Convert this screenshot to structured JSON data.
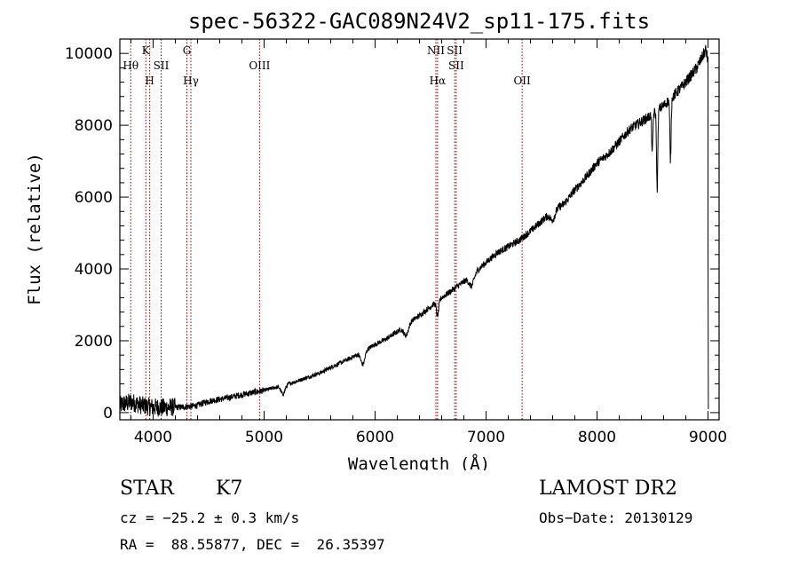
{
  "chart_data": {
    "type": "line",
    "title": "spec-56322-GAC089N24V2_sp11-175.fits",
    "xlabel": "Wavelength (Å)",
    "ylabel": "Flux (relative)",
    "xlim": [
      3700,
      9100
    ],
    "ylim": [
      -200,
      10400
    ],
    "xticks": [
      "4000",
      "5000",
      "6000",
      "7000",
      "8000",
      "9000"
    ],
    "yticks": [
      "0",
      "2000",
      "4000",
      "6000",
      "8000",
      "10000"
    ],
    "colors": {
      "spectrum": "#000000",
      "lines": "#8b0000",
      "frame": "#000000"
    },
    "spectrum_anchors": [
      [
        3700,
        200
      ],
      [
        3800,
        300
      ],
      [
        3900,
        200
      ],
      [
        4000,
        150
      ],
      [
        4100,
        150
      ],
      [
        4200,
        200
      ],
      [
        4300,
        250
      ],
      [
        4400,
        250
      ],
      [
        4500,
        330
      ],
      [
        4600,
        370
      ],
      [
        4700,
        430
      ],
      [
        4800,
        500
      ],
      [
        4900,
        560
      ],
      [
        5000,
        620
      ],
      [
        5100,
        700
      ],
      [
        5200,
        780
      ],
      [
        5300,
        880
      ],
      [
        5400,
        990
      ],
      [
        5500,
        1100
      ],
      [
        5600,
        1260
      ],
      [
        5700,
        1400
      ],
      [
        5800,
        1550
      ],
      [
        5900,
        1710
      ],
      [
        6000,
        1900
      ],
      [
        6100,
        2050
      ],
      [
        6200,
        2250
      ],
      [
        6300,
        2500
      ],
      [
        6400,
        2700
      ],
      [
        6500,
        2950
      ],
      [
        6600,
        3200
      ],
      [
        6700,
        3420
      ],
      [
        6800,
        3650
      ],
      [
        6900,
        3900
      ],
      [
        7000,
        4180
      ],
      [
        7100,
        4450
      ],
      [
        7200,
        4620
      ],
      [
        7300,
        4800
      ],
      [
        7400,
        5050
      ],
      [
        7500,
        5330
      ],
      [
        7600,
        5620
      ],
      [
        7700,
        5800
      ],
      [
        7800,
        6200
      ],
      [
        7900,
        6550
      ],
      [
        8000,
        6950
      ],
      [
        8100,
        7200
      ],
      [
        8200,
        7550
      ],
      [
        8300,
        7900
      ],
      [
        8400,
        8100
      ],
      [
        8500,
        8300
      ],
      [
        8600,
        8550
      ],
      [
        8700,
        8850
      ],
      [
        8800,
        9200
      ],
      [
        8900,
        9600
      ],
      [
        8980,
        10100
      ],
      [
        9000,
        9800
      ]
    ],
    "absorption_features": [
      [
        4300,
        80,
        140
      ],
      [
        5170,
        250,
        25
      ],
      [
        5890,
        350,
        25
      ],
      [
        6280,
        300,
        30
      ],
      [
        6563,
        400,
        15
      ],
      [
        6870,
        300,
        30
      ],
      [
        7600,
        250,
        30
      ],
      [
        8498,
        1100,
        7
      ],
      [
        8542,
        2200,
        8
      ],
      [
        8662,
        1700,
        8
      ]
    ],
    "lines": [
      {
        "label": "Hθ",
        "wavelength": 3798,
        "row": "top",
        "offset": 0
      },
      {
        "label": "K",
        "wavelength": 3934,
        "row": "upper",
        "offset": 0
      },
      {
        "label": "H",
        "wavelength": 3969,
        "row": "lower",
        "offset": 0
      },
      {
        "label": "SII",
        "wavelength": 4072,
        "row": "top",
        "offset": 0
      },
      {
        "label": "G",
        "wavelength": 4304,
        "row": "upper",
        "offset": 0
      },
      {
        "label": "Hγ",
        "wavelength": 4340,
        "row": "lower",
        "offset": 0
      },
      {
        "label": "OIII",
        "wavelength": 4959,
        "row": "top",
        "offset": 0
      },
      {
        "label": "NII",
        "wavelength": 6548,
        "row": "upper",
        "offset": 0
      },
      {
        "label": "Hα",
        "wavelength": 6563,
        "row": "lower",
        "offset": 0
      },
      {
        "label": "SII",
        "wavelength": 6717,
        "row": "upper",
        "offset": 0
      },
      {
        "label": "SII",
        "wavelength": 6731,
        "row": "top",
        "offset": 0
      },
      {
        "label": "OII",
        "wavelength": 7325,
        "row": "lower",
        "offset": 0
      }
    ]
  },
  "info": {
    "class": "STAR",
    "subclass": "K7",
    "survey": "LAMOST DR2",
    "cz": "cz = −25.2 ± 0.3 km/s",
    "obs_date": "Obs−Date: 20130129",
    "coords": "RA =  88.55877, DEC =  26.35397"
  }
}
